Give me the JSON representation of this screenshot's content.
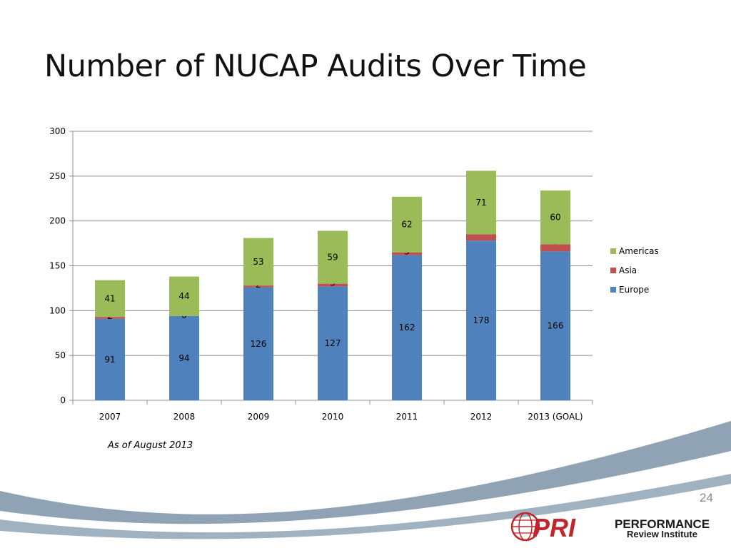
{
  "slide": {
    "title": "Number of NUCAP Audits Over Time",
    "note": "As of August 2013",
    "page_number": "24"
  },
  "logo": {
    "mark": "PRI",
    "line1": "PERFORMANCE",
    "line2": "Review Institute",
    "colors": {
      "mark": "#c0272d",
      "text": "#1a1a1a"
    }
  },
  "colors": {
    "europe": "#4f81bd",
    "asia": "#c0504d",
    "americas": "#9bbb59",
    "swoosh": "#8fa3b5"
  },
  "chart_data": {
    "type": "bar",
    "stacked": true,
    "categories": [
      "2007",
      "2008",
      "2009",
      "2010",
      "2011",
      "2012",
      "2013 (GOAL)"
    ],
    "series": [
      {
        "name": "Europe",
        "values": [
          91,
          94,
          126,
          127,
          162,
          178,
          166
        ],
        "color": "#4f81bd"
      },
      {
        "name": "Asia",
        "values": [
          2,
          0,
          2,
          3,
          3,
          7,
          8
        ],
        "color": "#c0504d"
      },
      {
        "name": "Americas",
        "values": [
          41,
          44,
          53,
          59,
          62,
          71,
          60
        ],
        "color": "#9bbb59"
      }
    ],
    "ylim": [
      0,
      300
    ],
    "yticks": [
      0,
      50,
      100,
      150,
      200,
      250,
      300
    ],
    "grid": true,
    "legend": "right",
    "legend_order": [
      "Americas",
      "Asia",
      "Europe"
    ],
    "data_labels": true
  }
}
